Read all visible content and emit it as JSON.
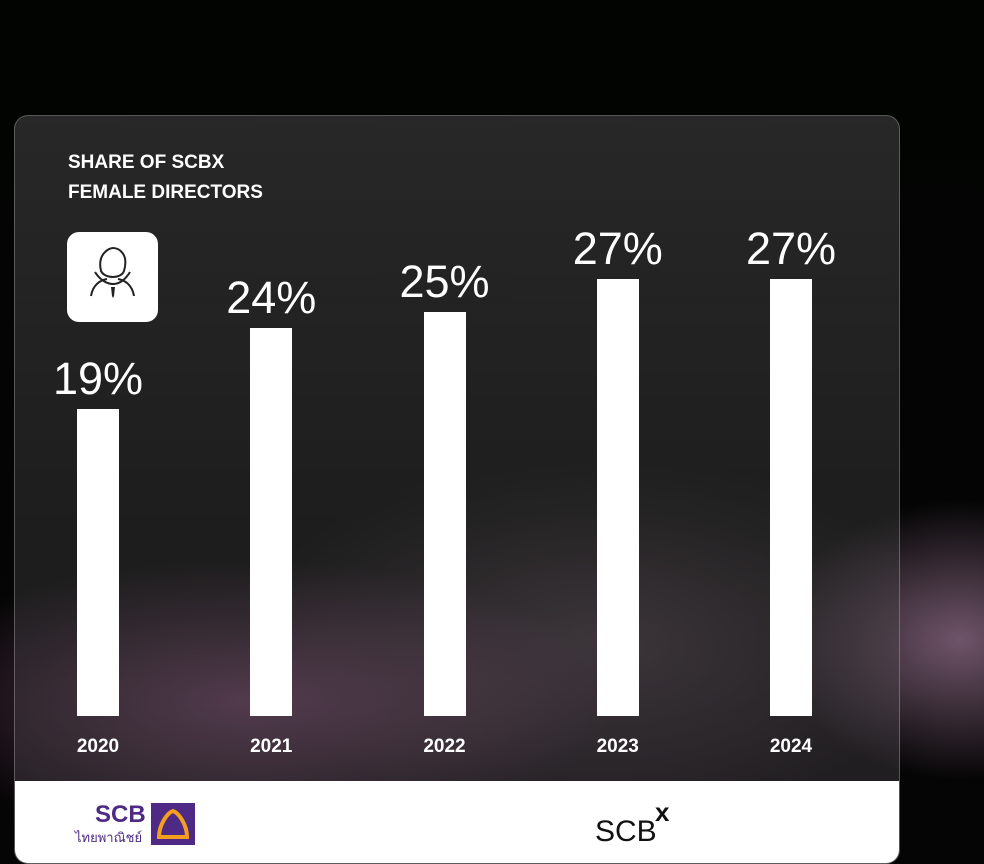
{
  "chart_data": {
    "type": "bar",
    "title": "SHARE OF SCBX FEMALE DIRECTORS",
    "categories": [
      "2020",
      "2021",
      "2022",
      "2023",
      "2024"
    ],
    "values": [
      19,
      24,
      25,
      27,
      27
    ],
    "value_labels": [
      "19%",
      "24%",
      "25%",
      "27%",
      "27%"
    ],
    "color": "#ffffff",
    "ylim": [
      0,
      28
    ]
  },
  "footer": {
    "left_logo": "SCB",
    "left_logo_sub": "ไทยพาณิชย์",
    "right_logo": "SCB",
    "right_logo_sup": "X"
  }
}
